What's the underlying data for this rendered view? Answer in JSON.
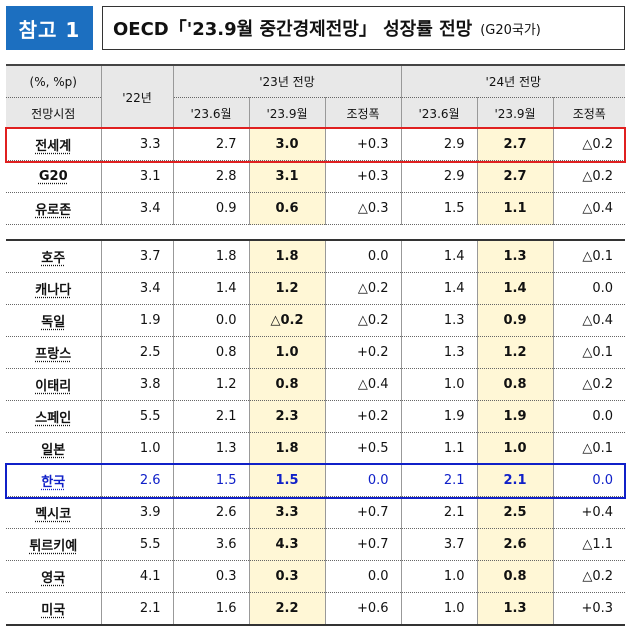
{
  "header": {
    "badge": "참고 1",
    "title": "OECD「'23.9월 중간경제전망」 성장률 전망",
    "subtitle": "(G20국가)"
  },
  "table": {
    "unit_label": "(%, %p)",
    "time_label": "전망시점",
    "col_22": "'22년",
    "group_23": "'23년 전망",
    "group_24": "'24년 전망",
    "sub_jun": "'23.6월",
    "sub_sep": "'23.9월",
    "sub_adj": "조정폭",
    "rows_top": [
      {
        "name": "전세계",
        "v22": "3.3",
        "j23": "2.7",
        "s23": "3.0",
        "a23": "+0.3",
        "j24": "2.9",
        "s24": "2.7",
        "a24": "△0.2"
      },
      {
        "name": "G20",
        "v22": "3.1",
        "j23": "2.8",
        "s23": "3.1",
        "a23": "+0.3",
        "j24": "2.9",
        "s24": "2.7",
        "a24": "△0.2"
      },
      {
        "name": "유로존",
        "v22": "3.4",
        "j23": "0.9",
        "s23": "0.6",
        "a23": "△0.3",
        "j24": "1.5",
        "s24": "1.1",
        "a24": "△0.4"
      }
    ],
    "rows_countries": [
      {
        "name": "호주",
        "v22": "3.7",
        "j23": "1.8",
        "s23": "1.8",
        "a23": "0.0",
        "j24": "1.4",
        "s24": "1.3",
        "a24": "△0.1"
      },
      {
        "name": "캐나다",
        "v22": "3.4",
        "j23": "1.4",
        "s23": "1.2",
        "a23": "△0.2",
        "j24": "1.4",
        "s24": "1.4",
        "a24": "0.0"
      },
      {
        "name": "독일",
        "v22": "1.9",
        "j23": "0.0",
        "s23": "△0.2",
        "a23": "△0.2",
        "j24": "1.3",
        "s24": "0.9",
        "a24": "△0.4"
      },
      {
        "name": "프랑스",
        "v22": "2.5",
        "j23": "0.8",
        "s23": "1.0",
        "a23": "+0.2",
        "j24": "1.3",
        "s24": "1.2",
        "a24": "△0.1"
      },
      {
        "name": "이태리",
        "v22": "3.8",
        "j23": "1.2",
        "s23": "0.8",
        "a23": "△0.4",
        "j24": "1.0",
        "s24": "0.8",
        "a24": "△0.2"
      },
      {
        "name": "스페인",
        "v22": "5.5",
        "j23": "2.1",
        "s23": "2.3",
        "a23": "+0.2",
        "j24": "1.9",
        "s24": "1.9",
        "a24": "0.0"
      },
      {
        "name": "일본",
        "v22": "1.0",
        "j23": "1.3",
        "s23": "1.8",
        "a23": "+0.5",
        "j24": "1.1",
        "s24": "1.0",
        "a24": "△0.1"
      },
      {
        "name": "한국",
        "v22": "2.6",
        "j23": "1.5",
        "s23": "1.5",
        "a23": "0.0",
        "j24": "2.1",
        "s24": "2.1",
        "a24": "0.0"
      },
      {
        "name": "멕시코",
        "v22": "3.9",
        "j23": "2.6",
        "s23": "3.3",
        "a23": "+0.7",
        "j24": "2.1",
        "s24": "2.5",
        "a24": "+0.4"
      },
      {
        "name": "튀르키예",
        "v22": "5.5",
        "j23": "3.6",
        "s23": "4.3",
        "a23": "+0.7",
        "j24": "3.7",
        "s24": "2.6",
        "a24": "△1.1"
      },
      {
        "name": "영국",
        "v22": "4.1",
        "j23": "0.3",
        "s23": "0.3",
        "a23": "0.0",
        "j24": "1.0",
        "s24": "0.8",
        "a24": "△0.2"
      },
      {
        "name": "미국",
        "v22": "2.1",
        "j23": "1.6",
        "s23": "2.2",
        "a23": "+0.6",
        "j24": "1.0",
        "s24": "1.3",
        "a24": "+0.3"
      }
    ]
  },
  "colors": {
    "badge_bg": "#1c6fc0",
    "highlight_col": "#fff7d6",
    "world_outline": "#e02020",
    "korea_outline": "#1020c8",
    "korea_text": "#1020c8"
  }
}
